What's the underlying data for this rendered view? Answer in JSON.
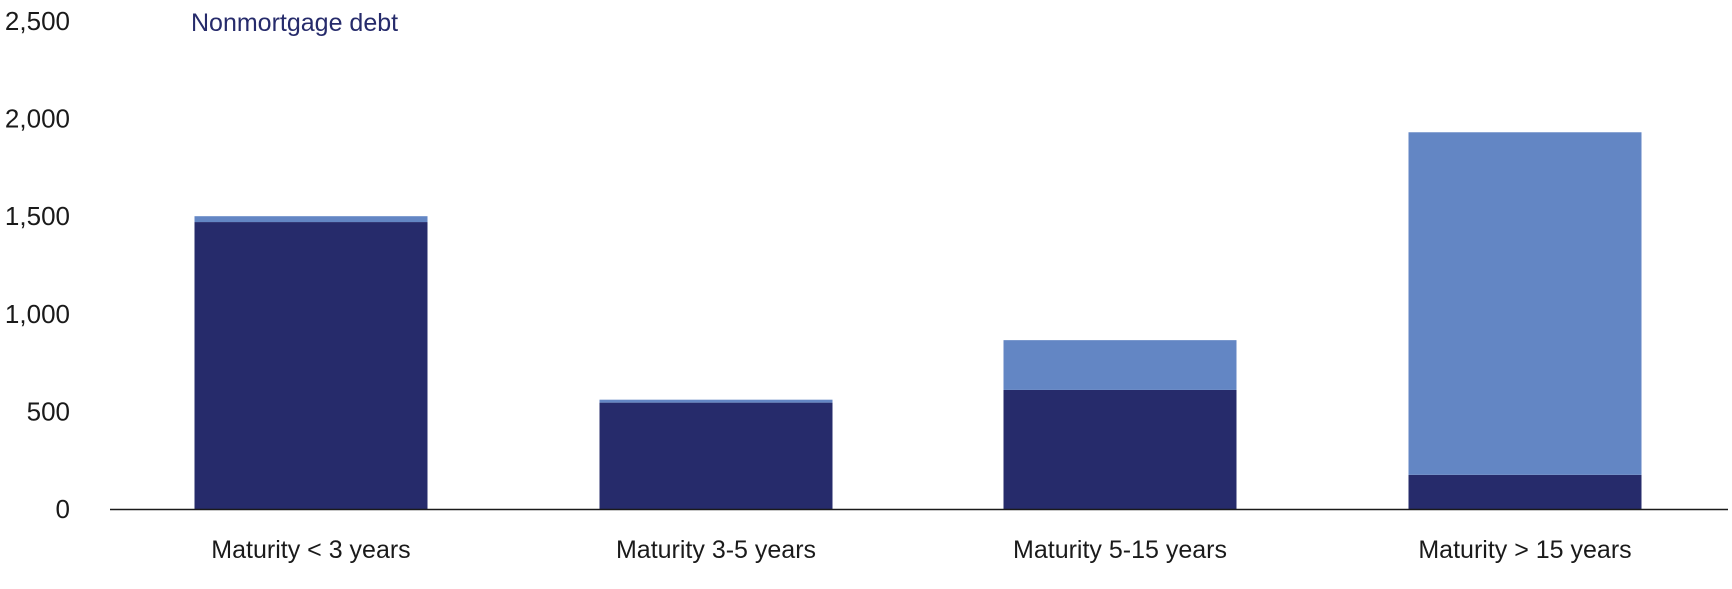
{
  "chart_data": {
    "type": "bar",
    "stacked": true,
    "categories": [
      "Maturity < 3 years",
      "Maturity 3-5 years",
      "Maturity 5-15 years",
      "Maturity > 15 years"
    ],
    "series": [
      {
        "name": "Nonmortgage debt",
        "color": "#262b6b",
        "values": [
          1470,
          545,
          610,
          175
        ]
      },
      {
        "name": "",
        "color": "#6386c4",
        "values": [
          30,
          15,
          255,
          1755
        ]
      }
    ],
    "title": "",
    "xlabel": "",
    "ylabel": "",
    "ylim": [
      0,
      2500
    ],
    "yticks": [
      0,
      500,
      1000,
      1500,
      2000,
      2500
    ],
    "ytick_labels": [
      "0",
      "500",
      "1,000",
      "1,500",
      "2,000",
      "2,500"
    ],
    "grid": false,
    "legend": "top-left",
    "axis_color": "#1a1a1a"
  }
}
